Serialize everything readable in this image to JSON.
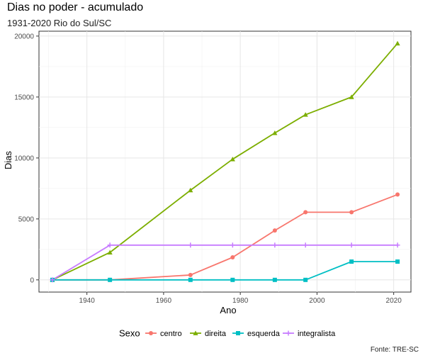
{
  "chart_data": {
    "type": "line",
    "title": "Dias no poder - acumulado",
    "subtitle": "1931-2020 Rio do Sul/SC",
    "xlabel": "Ano",
    "ylabel": "Dias",
    "caption": "Fonte: TRE-SC",
    "xlim": [
      1927.5,
      2024.5
    ],
    "ylim": [
      -1000,
      20400
    ],
    "xticks": [
      1940,
      1960,
      1980,
      2000,
      2020
    ],
    "yticks": [
      0,
      5000,
      10000,
      15000,
      20000
    ],
    "grid": true,
    "legend": {
      "title": "Sexo",
      "position": "bottom"
    },
    "series": [
      {
        "name": "centro",
        "color": "#F8766D",
        "marker": "circle",
        "x": [
          1931,
          1946,
          1967,
          1978,
          1989,
          1997,
          2009,
          2021
        ],
        "y": [
          0,
          0,
          400,
          1850,
          4050,
          5550,
          5550,
          7000
        ]
      },
      {
        "name": "direita",
        "color": "#7CAE00",
        "marker": "triangle",
        "x": [
          1931,
          1946,
          1967,
          1978,
          1989,
          1997,
          2009,
          2021
        ],
        "y": [
          0,
          2250,
          7350,
          9900,
          12050,
          13550,
          15000,
          19400
        ]
      },
      {
        "name": "esquerda",
        "color": "#00BFC4",
        "marker": "square",
        "x": [
          1931,
          1946,
          1967,
          1978,
          1989,
          1997,
          2009,
          2021
        ],
        "y": [
          0,
          0,
          0,
          0,
          0,
          0,
          1500,
          1500
        ]
      },
      {
        "name": "integralista",
        "color": "#C77CFF",
        "marker": "plus",
        "x": [
          1931,
          1946,
          1967,
          1978,
          1989,
          1997,
          2009,
          2021
        ],
        "y": [
          0,
          2850,
          2850,
          2850,
          2850,
          2850,
          2850,
          2850
        ]
      }
    ]
  }
}
